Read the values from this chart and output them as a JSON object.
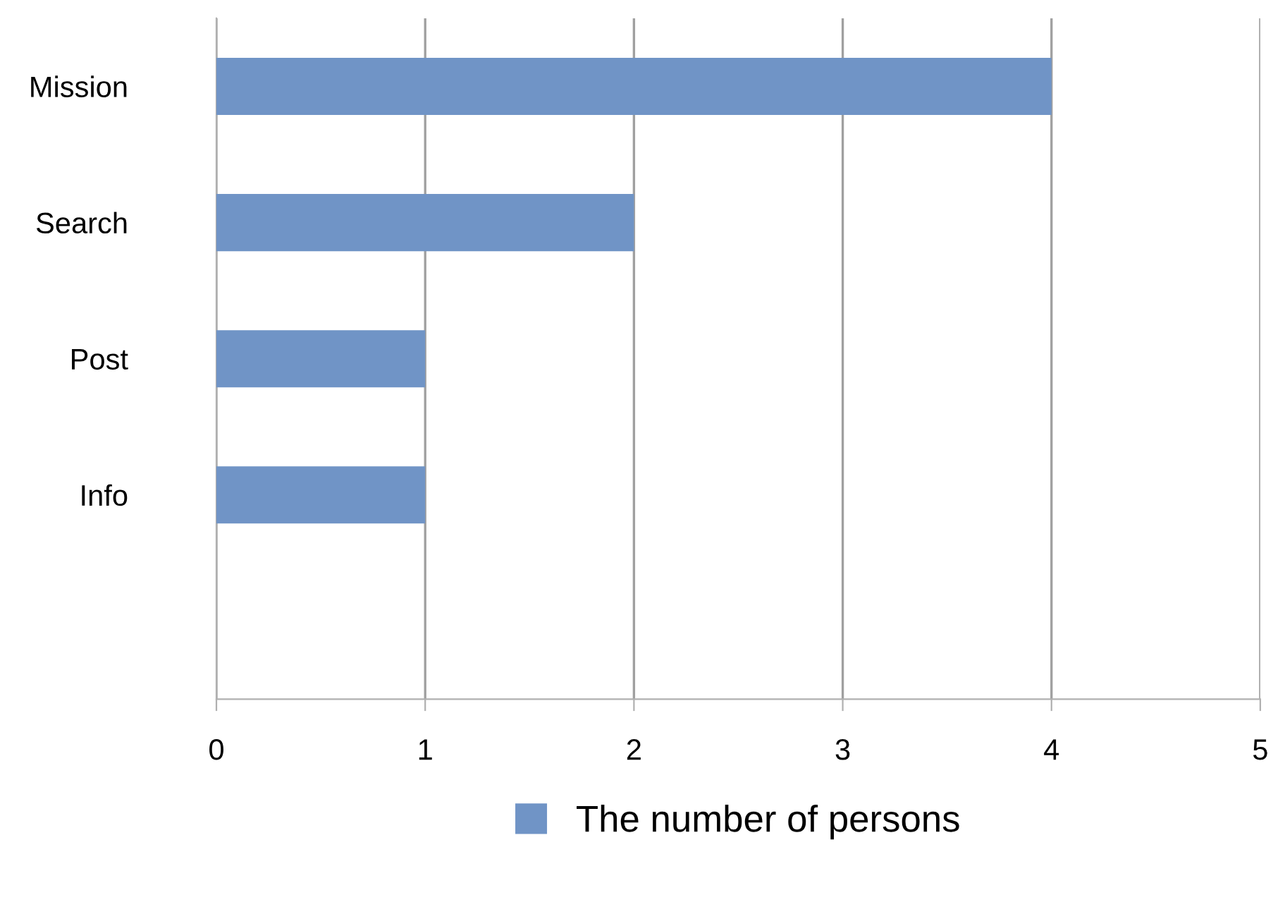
{
  "chart_data": {
    "type": "bar",
    "orientation": "horizontal",
    "categories": [
      "Mission",
      "Search",
      "Post",
      "Info",
      null
    ],
    "series": [
      {
        "name": "The number of persons",
        "color": "#7094c6",
        "values": [
          4,
          2,
          1,
          1,
          0
        ]
      }
    ],
    "xlim": [
      0,
      5
    ],
    "xticks": [
      0,
      1,
      2,
      3,
      4,
      5
    ],
    "grid": "x",
    "legend": "bottom"
  }
}
